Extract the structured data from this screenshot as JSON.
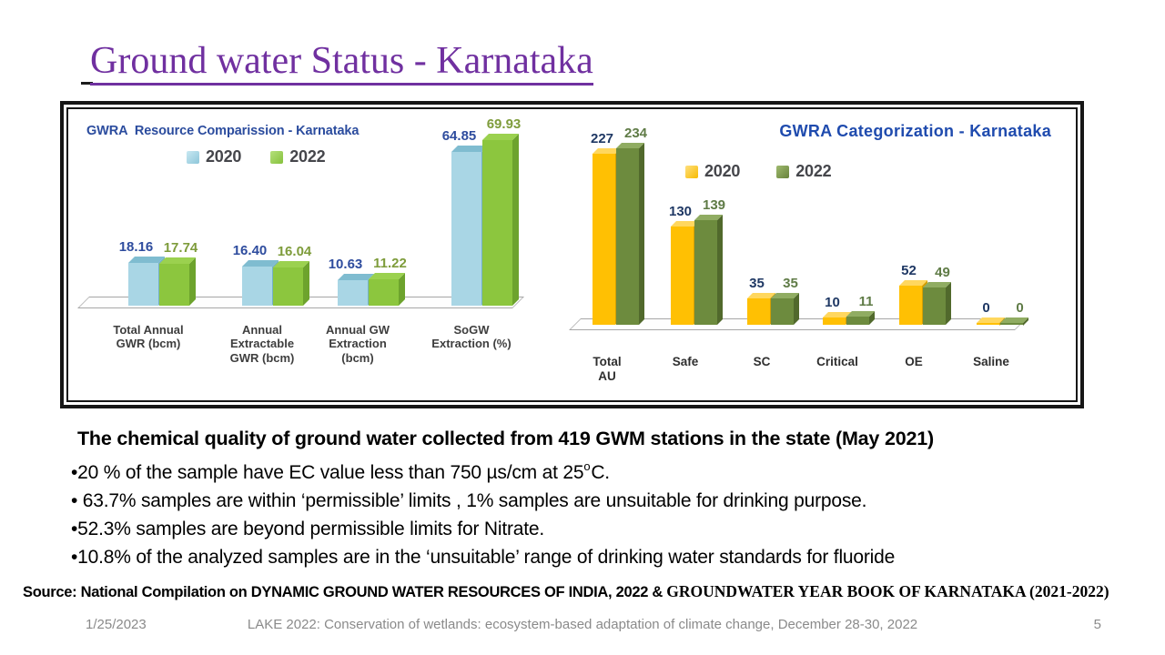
{
  "slide": {
    "title": "Ground water Status - Karnataka",
    "title_color": "#7030A0",
    "footer_date": "1/25/2023",
    "footer_center": "LAKE 2022: Conservation of wetlands: ecosystem-based adaptation of climate change, December 28-30, 2022",
    "page_number": "5"
  },
  "chart_data": [
    {
      "type": "bar",
      "title": "GWRA  Resource Comparission - Karnataka",
      "title_color": "#2b4c9e",
      "legend_position": "top",
      "axes_visible": false,
      "grid": false,
      "ylim": [
        0,
        75
      ],
      "categories": [
        "Total Annual GWR (bcm)",
        "Annual Extractable GWR (bcm)",
        "Annual GW Extraction (bcm)",
        "SoGW Extraction (%)"
      ],
      "category_lines": [
        [
          "Total Annual",
          "GWR (bcm)"
        ],
        [
          "Annual",
          "Extractable",
          "GWR (bcm)"
        ],
        [
          "Annual GW",
          "Extraction",
          "(bcm)"
        ],
        [
          "SoGW",
          "Extraction (%)"
        ]
      ],
      "series": [
        {
          "name": "2020",
          "values": [
            18.16,
            16.4,
            10.63,
            64.85
          ],
          "labels": [
            "18.16",
            "16.40",
            "10.63",
            "64.85"
          ],
          "face": "#a9d6e5",
          "top": "#7fbcd0",
          "side": "#74b0c6",
          "swatch": [
            "#c8e8f2",
            "#8ec6d9"
          ],
          "label_color": "#2e4c9e"
        },
        {
          "name": "2022",
          "values": [
            17.74,
            16.04,
            11.22,
            69.93
          ],
          "labels": [
            "17.74",
            "16.04",
            "11.22",
            "69.93"
          ],
          "face": "#8cc63e",
          "top": "#9bd14f",
          "side": "#6da32d",
          "swatch": [
            "#b5e07c",
            "#86c13c"
          ],
          "label_color": "#7e9c3b"
        }
      ]
    },
    {
      "type": "bar",
      "title": "GWRA Categorization - Karnataka",
      "title_color": "#1f4bae",
      "legend_position": "top",
      "axes_visible": false,
      "grid": false,
      "ylim": [
        0,
        250
      ],
      "categories": [
        "Total AU",
        "Safe",
        "SC",
        "Critical",
        "OE",
        "Saline"
      ],
      "category_lines": [
        [
          "Total",
          "AU"
        ],
        [
          "Safe"
        ],
        [
          "SC"
        ],
        [
          "Critical"
        ],
        [
          "OE"
        ],
        [
          "Saline"
        ]
      ],
      "series": [
        {
          "name": "2020",
          "values": [
            227,
            130,
            35,
            10,
            52,
            0
          ],
          "labels": [
            "227",
            "130",
            "35",
            "10",
            "52",
            "0"
          ],
          "face": "#ffc003",
          "top": "#ffd75e",
          "side": "#d59f00",
          "swatch": [
            "#ffdf7e",
            "#f7bb00"
          ],
          "label_color": "#1f3864"
        },
        {
          "name": "2022",
          "values": [
            234,
            139,
            35,
            11,
            49,
            0
          ],
          "labels": [
            "234",
            "139",
            "35",
            "11",
            "49",
            "0"
          ],
          "face": "#6d8b3e",
          "top": "#90ac62",
          "side": "#51692c",
          "swatch": [
            "#9fba6f",
            "#67823a"
          ],
          "label_color": "#5f7b46"
        }
      ]
    }
  ],
  "body": {
    "heading": "The chemical quality of ground water collected from 419 GWM stations in the state (May 2021)",
    "bullets": [
      {
        "text": "•20 % of  the sample have EC value less than 750 µs/cm at 25",
        "sup": "o",
        "tail": "C."
      },
      {
        "text": "• 63.7% samples are within ‘permissible’ limits ,  1%  samples are unsuitable for drinking purpose."
      },
      {
        "text": "•52.3% samples are beyond permissible limits for Nitrate."
      },
      {
        "text": "•10.8% of the analyzed samples are in the ‘unsuitable’ range of drinking water standards for fluoride"
      }
    ]
  },
  "source": {
    "part_sans": "Source: National Compilation on DYNAMIC GROUND WATER RESOURCES OF INDIA, 2022 & ",
    "part_serif": "GROUNDWATER YEAR BOOK OF KARNATAKA (2021-2022)"
  }
}
